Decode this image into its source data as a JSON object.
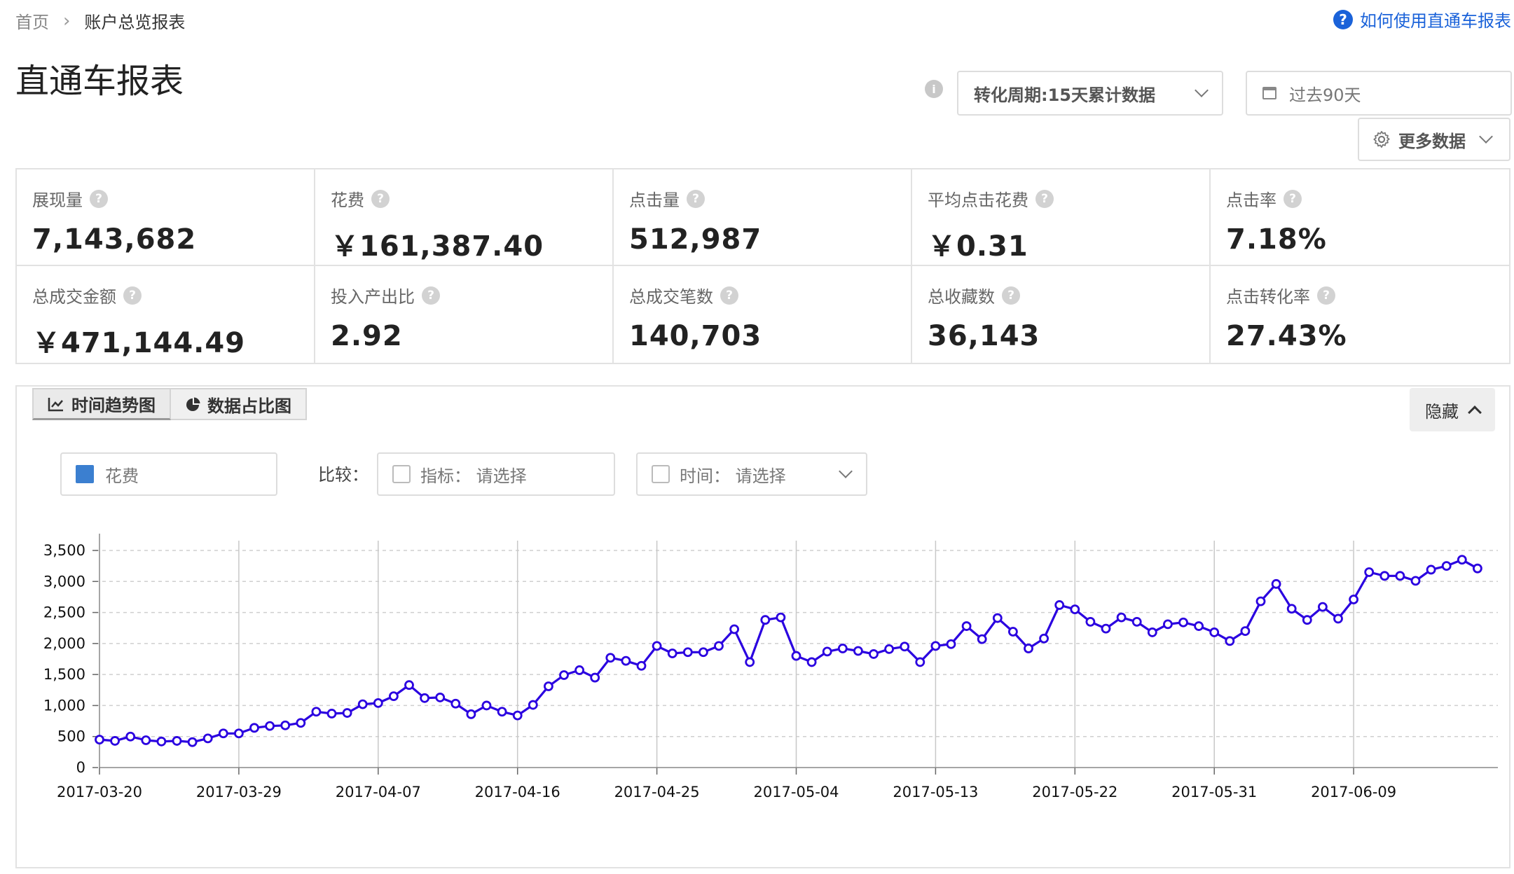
{
  "breadcrumb": {
    "home": "首页",
    "separator": "›",
    "current": "账户总览报表"
  },
  "help": {
    "icon": "?",
    "label": "如何使用直通车报表"
  },
  "page_title": "直通车报表",
  "toolbar": {
    "info_icon": "i",
    "period_select": "转化周期:15天累计数据",
    "date_range": "过去90天",
    "more_data": "更多数据"
  },
  "metrics": [
    {
      "label": "展现量",
      "value": "7,143,682"
    },
    {
      "label": "花费",
      "value": "￥161,387.40"
    },
    {
      "label": "点击量",
      "value": "512,987"
    },
    {
      "label": "平均点击花费",
      "value": "￥0.31"
    },
    {
      "label": "点击率",
      "value": "7.18%"
    },
    {
      "label": "总成交金额",
      "value": "￥471,144.49"
    },
    {
      "label": "投入产出比",
      "value": "2.92"
    },
    {
      "label": "总成交笔数",
      "value": "140,703"
    },
    {
      "label": "总收藏数",
      "value": "36,143"
    },
    {
      "label": "点击转化率",
      "value": "27.43%"
    }
  ],
  "chart_tabs": {
    "trend": "时间趋势图",
    "share": "数据占比图"
  },
  "hide_button": "隐藏",
  "series_select": {
    "label": "花费",
    "color": "#3b7fd0"
  },
  "compare": {
    "label": "比较：",
    "metric_placeholder": "指标：  请选择",
    "time_placeholder": "时间：  请选择"
  },
  "colors": {
    "line": "#2a00e0",
    "accent": "#1a62d9"
  },
  "chart_data": {
    "type": "line",
    "title": "",
    "xlabel": "",
    "ylabel": "",
    "ylim": [
      0,
      3500
    ],
    "yticks": [
      0,
      500,
      1000,
      1500,
      2000,
      2500,
      3000,
      3500
    ],
    "ytick_labels": [
      "0",
      "500",
      "1,000",
      "1,500",
      "2,000",
      "2,500",
      "3,000",
      "3,500"
    ],
    "x_start": "2017-03-20",
    "xtick_labels": [
      "2017-03-20",
      "2017-03-29",
      "2017-04-07",
      "2017-04-16",
      "2017-04-25",
      "2017-05-04",
      "2017-05-13",
      "2017-05-22",
      "2017-05-31",
      "2017-06-09"
    ],
    "grid": true,
    "series": [
      {
        "values": [
          450,
          430,
          500,
          440,
          420,
          430,
          410,
          470,
          550,
          550,
          640,
          670,
          680,
          720,
          900,
          870,
          880,
          1020,
          1040,
          1150,
          1330,
          1120,
          1130,
          1030,
          860,
          1000,
          900,
          840,
          1010,
          1310,
          1490,
          1570,
          1450,
          1770,
          1720,
          1640,
          1960,
          1840,
          1860,
          1860,
          1960,
          2230,
          1700,
          2380,
          2420,
          1800,
          1700,
          1870,
          1920,
          1880,
          1830,
          1910,
          1950,
          1700,
          1960,
          1990,
          2280,
          2070,
          2410,
          2190,
          1920,
          2080,
          2620,
          2550,
          2350,
          2240,
          2420,
          2350,
          2180,
          2310,
          2340,
          2280,
          2180,
          2040,
          2200,
          2680,
          2960,
          2560,
          2380,
          2590,
          2400,
          2710,
          3150,
          3090,
          3090,
          3010,
          3190,
          3250,
          3350,
          3210
        ]
      }
    ]
  }
}
